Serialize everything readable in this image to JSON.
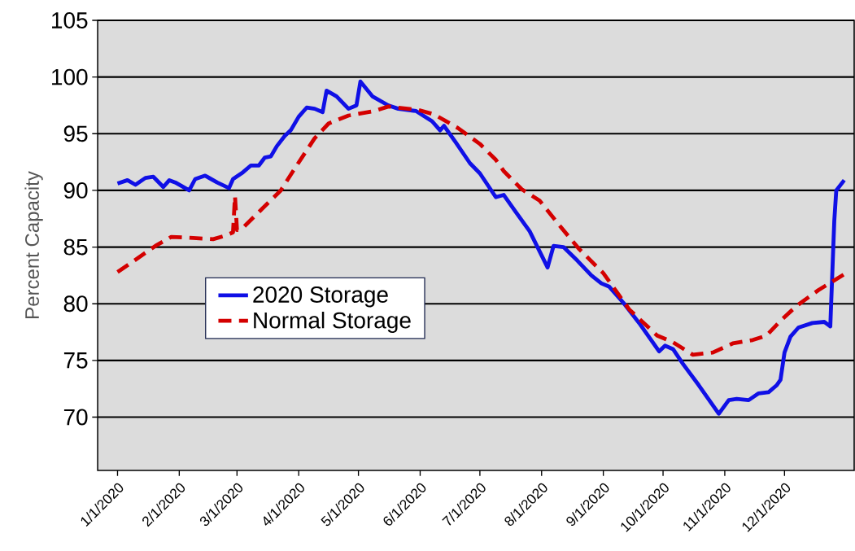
{
  "chart_data": {
    "type": "line",
    "ylabel": "Percent Capacity",
    "xlim": [
      "2019-12-22",
      "2021-01-05"
    ],
    "ylim": [
      65.3,
      105
    ],
    "xticks": [
      {
        "value": "2020-01-01",
        "label": "1/1/2020"
      },
      {
        "value": "2020-02-01",
        "label": "2/1/2020"
      },
      {
        "value": "2020-03-01",
        "label": "3/1/2020"
      },
      {
        "value": "2020-04-01",
        "label": "4/1/2020"
      },
      {
        "value": "2020-05-01",
        "label": "5/1/2020"
      },
      {
        "value": "2020-06-01",
        "label": "6/1/2020"
      },
      {
        "value": "2020-07-01",
        "label": "7/1/2020"
      },
      {
        "value": "2020-08-01",
        "label": "8/1/2020"
      },
      {
        "value": "2020-09-01",
        "label": "9/1/2020"
      },
      {
        "value": "2020-10-01",
        "label": "10/1/2020"
      },
      {
        "value": "2020-11-01",
        "label": "11/1/2020"
      },
      {
        "value": "2020-12-01",
        "label": "12/1/2020"
      }
    ],
    "yticks": [
      70,
      75,
      80,
      85,
      90,
      95,
      100,
      105
    ],
    "grid": "y",
    "legend": "center left",
    "series": [
      {
        "name": "2020 Storage",
        "color": "#1010e6",
        "line_style": "solid",
        "x": [
          "2020-01-01",
          "2020-01-06",
          "2020-01-10",
          "2020-01-15",
          "2020-01-19",
          "2020-01-24",
          "2020-01-27",
          "2020-01-30",
          "2020-02-06",
          "2020-02-09",
          "2020-02-14",
          "2020-02-20",
          "2020-02-26",
          "2020-02-28",
          "2020-03-04",
          "2020-03-08",
          "2020-03-12",
          "2020-03-15",
          "2020-03-18",
          "2020-03-21",
          "2020-03-25",
          "2020-03-28",
          "2020-04-01",
          "2020-04-05",
          "2020-04-09",
          "2020-04-13",
          "2020-04-15",
          "2020-04-20",
          "2020-04-26",
          "2020-04-30",
          "2020-05-02",
          "2020-05-08",
          "2020-05-16",
          "2020-05-21",
          "2020-05-30",
          "2020-06-07",
          "2020-06-11",
          "2020-06-13",
          "2020-06-19",
          "2020-06-26",
          "2020-07-01",
          "2020-07-09",
          "2020-07-13",
          "2020-07-19",
          "2020-07-26",
          "2020-08-04",
          "2020-08-07",
          "2020-08-12",
          "2020-08-19",
          "2020-08-26",
          "2020-08-31",
          "2020-09-04",
          "2020-09-11",
          "2020-09-19",
          "2020-09-29",
          "2020-10-02",
          "2020-10-06",
          "2020-10-11",
          "2020-10-19",
          "2020-10-29",
          "2020-11-03",
          "2020-11-07",
          "2020-11-13",
          "2020-11-18",
          "2020-11-23",
          "2020-11-27",
          "2020-11-29",
          "2020-12-01",
          "2020-12-04",
          "2020-12-08",
          "2020-12-15",
          "2020-12-21",
          "2020-12-24",
          "2020-12-26",
          "2020-12-27",
          "2020-12-31"
        ],
        "values": [
          90.6,
          90.9,
          90.5,
          91.1,
          91.2,
          90.3,
          90.9,
          90.7,
          90.0,
          91.0,
          91.3,
          90.7,
          90.2,
          91.0,
          91.6,
          92.2,
          92.2,
          92.9,
          93.0,
          93.9,
          94.8,
          95.3,
          96.5,
          97.3,
          97.2,
          96.9,
          98.8,
          98.3,
          97.2,
          97.5,
          99.6,
          98.3,
          97.5,
          97.2,
          97.0,
          96.1,
          95.3,
          95.7,
          94.2,
          92.4,
          91.5,
          89.4,
          89.6,
          88.1,
          86.4,
          83.2,
          85.1,
          85.0,
          83.8,
          82.5,
          81.8,
          81.5,
          80.1,
          78.3,
          75.8,
          76.3,
          76.0,
          74.7,
          72.8,
          70.3,
          71.5,
          71.6,
          71.5,
          72.1,
          72.2,
          72.8,
          73.3,
          75.7,
          77.1,
          77.9,
          78.3,
          78.4,
          78.0,
          87.3,
          90.0,
          90.9
        ]
      },
      {
        "name": "Normal Storage",
        "color": "#d40000",
        "line_style": "dashed",
        "x": [
          "2020-01-01",
          "2020-01-11",
          "2020-01-20",
          "2020-01-28",
          "2020-02-08",
          "2020-02-18",
          "2020-02-24",
          "2020-02-28",
          "2020-02-29",
          "2020-03-01",
          "2020-03-04",
          "2020-03-12",
          "2020-03-23",
          "2020-03-31",
          "2020-04-09",
          "2020-04-16",
          "2020-04-26",
          "2020-05-09",
          "2020-05-16",
          "2020-05-31",
          "2020-06-08",
          "2020-06-20",
          "2020-07-01",
          "2020-07-09",
          "2020-07-13",
          "2020-07-22",
          "2020-07-31",
          "2020-08-10",
          "2020-08-20",
          "2020-09-01",
          "2020-09-14",
          "2020-09-28",
          "2020-10-06",
          "2020-10-16",
          "2020-10-26",
          "2020-11-05",
          "2020-11-15",
          "2020-11-22",
          "2020-11-29",
          "2020-12-07",
          "2020-12-18",
          "2020-12-31"
        ],
        "values": [
          82.8,
          84.0,
          85.1,
          85.9,
          85.8,
          85.7,
          86.0,
          86.3,
          89.5,
          86.5,
          86.7,
          88.1,
          90.0,
          92.2,
          94.6,
          95.9,
          96.6,
          97.0,
          97.4,
          97.1,
          96.7,
          95.5,
          94.1,
          92.7,
          91.7,
          90.1,
          89.1,
          86.9,
          84.8,
          82.7,
          79.5,
          77.2,
          76.6,
          75.5,
          75.7,
          76.5,
          76.8,
          77.2,
          78.5,
          79.8,
          81.2,
          82.6
        ]
      }
    ]
  }
}
